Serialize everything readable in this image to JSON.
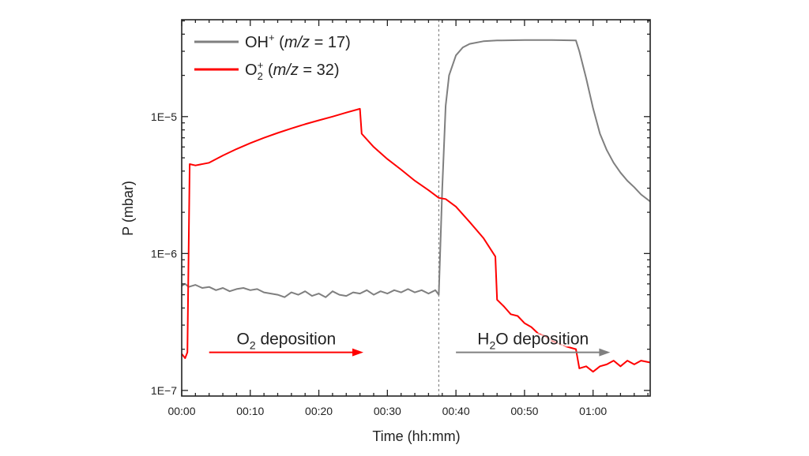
{
  "chart_data": {
    "type": "line",
    "xlabel": "Time (hh:mm)",
    "ylabel": "P (mbar)",
    "xlim": [
      "00:00:00",
      "01:08:20"
    ],
    "ylim": [
      9.1e-08,
      5.1e-05
    ],
    "yscale": "log",
    "grid": false,
    "legend_position": "top-left",
    "x_ticks": [
      "00:00",
      "00:10",
      "00:20",
      "00:30",
      "00:40",
      "00:50",
      "01:00"
    ],
    "y_ticks": [
      {
        "value": 1e-05,
        "label": "1E−5"
      },
      {
        "value": 1e-06,
        "label": "1E−6"
      },
      {
        "value": 1e-07,
        "label": "1E−7"
      }
    ],
    "vertical_marker": {
      "x": "00:37:30",
      "style": "dashed",
      "color": "#888888"
    },
    "series": [
      {
        "name": "OH+ (m/z = 17)",
        "legend": {
          "base": "OH",
          "sup": "+",
          "open": " (",
          "italic": "m/z",
          "close": " = 17)"
        },
        "color": "#7f7f7f",
        "points": [
          [
            "00:00:00",
            5.8e-07
          ],
          [
            "00:00:30",
            6e-07
          ],
          [
            "00:01:00",
            5.7e-07
          ],
          [
            "00:02:00",
            5.9e-07
          ],
          [
            "00:03:00",
            5.6e-07
          ],
          [
            "00:04:00",
            5.7e-07
          ],
          [
            "00:05:00",
            5.4e-07
          ],
          [
            "00:06:00",
            5.6e-07
          ],
          [
            "00:07:00",
            5.3e-07
          ],
          [
            "00:08:00",
            5.5e-07
          ],
          [
            "00:09:00",
            5.6e-07
          ],
          [
            "00:10:00",
            5.4e-07
          ],
          [
            "00:11:00",
            5.5e-07
          ],
          [
            "00:12:00",
            5.2e-07
          ],
          [
            "00:13:00",
            5.1e-07
          ],
          [
            "00:14:00",
            5e-07
          ],
          [
            "00:15:00",
            4.8e-07
          ],
          [
            "00:16:00",
            5.2e-07
          ],
          [
            "00:17:00",
            5e-07
          ],
          [
            "00:18:00",
            5.3e-07
          ],
          [
            "00:19:00",
            4.9e-07
          ],
          [
            "00:20:00",
            5.1e-07
          ],
          [
            "00:21:00",
            4.8e-07
          ],
          [
            "00:22:00",
            5.3e-07
          ],
          [
            "00:23:00",
            5e-07
          ],
          [
            "00:24:00",
            4.9e-07
          ],
          [
            "00:25:00",
            5.2e-07
          ],
          [
            "00:26:00",
            5.1e-07
          ],
          [
            "00:27:00",
            5.4e-07
          ],
          [
            "00:28:00",
            5e-07
          ],
          [
            "00:29:00",
            5.3e-07
          ],
          [
            "00:30:00",
            5.1e-07
          ],
          [
            "00:31:00",
            5.4e-07
          ],
          [
            "00:32:00",
            5.2e-07
          ],
          [
            "00:33:00",
            5.5e-07
          ],
          [
            "00:34:00",
            5.2e-07
          ],
          [
            "00:35:00",
            5.4e-07
          ],
          [
            "00:36:00",
            5.1e-07
          ],
          [
            "00:37:00",
            5.4e-07
          ],
          [
            "00:37:30",
            5e-07
          ],
          [
            "00:38:00",
            3e-06
          ],
          [
            "00:38:30",
            1.2e-05
          ],
          [
            "00:39:00",
            2e-05
          ],
          [
            "00:40:00",
            2.8e-05
          ],
          [
            "00:41:00",
            3.2e-05
          ],
          [
            "00:42:00",
            3.4e-05
          ],
          [
            "00:44:00",
            3.55e-05
          ],
          [
            "00:46:00",
            3.6e-05
          ],
          [
            "00:50:00",
            3.62e-05
          ],
          [
            "00:54:00",
            3.62e-05
          ],
          [
            "00:57:30",
            3.6e-05
          ],
          [
            "00:58:00",
            3e-05
          ],
          [
            "00:59:00",
            1.9e-05
          ],
          [
            "01:00:00",
            1.15e-05
          ],
          [
            "01:01:00",
            7.5e-06
          ],
          [
            "01:02:00",
            5.7e-06
          ],
          [
            "01:03:00",
            4.6e-06
          ],
          [
            "01:04:00",
            3.9e-06
          ],
          [
            "01:05:00",
            3.4e-06
          ],
          [
            "01:06:00",
            3.05e-06
          ],
          [
            "01:07:00",
            2.7e-06
          ],
          [
            "01:08:20",
            2.4e-06
          ]
        ]
      },
      {
        "name": "O2+ (m/z = 32)",
        "legend": {
          "base": "O",
          "sub": "2",
          "sup": "+",
          "open": " (",
          "italic": "m/z",
          "close": " = 32)"
        },
        "color": "#ff0000",
        "points": [
          [
            "00:00:00",
            1.85e-07
          ],
          [
            "00:00:30",
            1.72e-07
          ],
          [
            "00:00:50",
            1.9e-07
          ],
          [
            "00:01:10",
            4.5e-06
          ],
          [
            "00:02:00",
            4.4e-06
          ],
          [
            "00:04:00",
            4.6e-06
          ],
          [
            "00:06:00",
            5.2e-06
          ],
          [
            "00:08:00",
            5.8e-06
          ],
          [
            "00:10:00",
            6.4e-06
          ],
          [
            "00:12:00",
            7e-06
          ],
          [
            "00:14:00",
            7.6e-06
          ],
          [
            "00:16:00",
            8.2e-06
          ],
          [
            "00:18:00",
            8.8e-06
          ],
          [
            "00:20:00",
            9.4e-06
          ],
          [
            "00:22:00",
            1e-05
          ],
          [
            "00:24:00",
            1.07e-05
          ],
          [
            "00:26:00",
            1.14e-05
          ],
          [
            "00:26:15",
            7.5e-06
          ],
          [
            "00:28:00",
            6e-06
          ],
          [
            "00:30:00",
            4.9e-06
          ],
          [
            "00:32:00",
            4.1e-06
          ],
          [
            "00:34:00",
            3.4e-06
          ],
          [
            "00:36:00",
            2.9e-06
          ],
          [
            "00:37:30",
            2.55e-06
          ],
          [
            "00:38:30",
            2.5e-06
          ],
          [
            "00:40:00",
            2.2e-06
          ],
          [
            "00:42:00",
            1.7e-06
          ],
          [
            "00:44:00",
            1.3e-06
          ],
          [
            "00:45:45",
            9.5e-07
          ],
          [
            "00:46:00",
            4.6e-07
          ],
          [
            "00:47:00",
            4.1e-07
          ],
          [
            "00:48:00",
            3.6e-07
          ],
          [
            "00:49:00",
            3.5e-07
          ],
          [
            "00:50:00",
            3.1e-07
          ],
          [
            "00:51:00",
            2.9e-07
          ],
          [
            "00:52:00",
            2.6e-07
          ],
          [
            "00:53:00",
            2.5e-07
          ],
          [
            "00:54:00",
            2.3e-07
          ],
          [
            "00:55:00",
            2.2e-07
          ],
          [
            "00:56:00",
            2.1e-07
          ],
          [
            "00:57:30",
            2e-07
          ],
          [
            "00:58:00",
            1.45e-07
          ],
          [
            "00:59:00",
            1.5e-07
          ],
          [
            "01:00:00",
            1.37e-07
          ],
          [
            "01:01:00",
            1.5e-07
          ],
          [
            "01:02:00",
            1.55e-07
          ],
          [
            "01:03:00",
            1.65e-07
          ],
          [
            "01:04:00",
            1.5e-07
          ],
          [
            "01:05:00",
            1.65e-07
          ],
          [
            "01:06:00",
            1.55e-07
          ],
          [
            "01:07:00",
            1.65e-07
          ],
          [
            "01:08:20",
            1.6e-07
          ]
        ]
      }
    ],
    "annotations": [
      {
        "base": "O",
        "sub": "2",
        "rest": " deposition",
        "from": "00:04:00",
        "to": "00:26:30",
        "color": "#ff0000",
        "value": 2e-07
      },
      {
        "base": "H",
        "sub": "2",
        "rest": "O deposition",
        "from": "00:40:00",
        "to": "01:02:30",
        "color": "#808080",
        "value": 2e-07
      }
    ]
  }
}
